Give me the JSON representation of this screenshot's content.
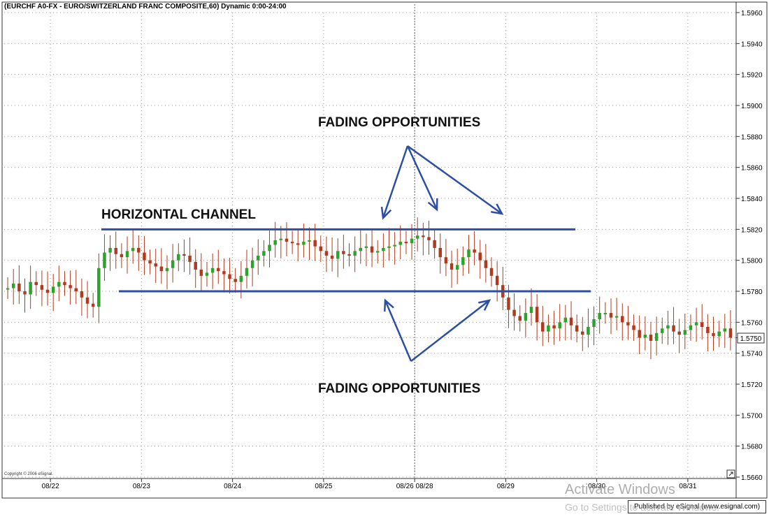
{
  "header": {
    "title": "(EURCHF A0-FX - EURO/SWITZERLAND FRANC COMPOSITE,60) Dynamic 0:00-24:00"
  },
  "footer": {
    "copyright": "Copyright © 2006 eSignal.",
    "published": "Published by eSignal (www.esignal.com)",
    "corner_icon": "expand-icon"
  },
  "overlay": {
    "watermark_line1": "Activate Windows",
    "watermark_line2": "Go to Settings to activate Windows."
  },
  "colors": {
    "up_candle": "#2aa52a",
    "down_candle": "#b03a1e",
    "channel_line": "#2c4fa3",
    "arrow": "#2c4fa3",
    "grid": "#9a9a9a"
  },
  "chart_data": {
    "type": "candlestick",
    "title": "(EURCHF A0-FX - EURO/SWITZERLAND FRANC COMPOSITE,60) Dynamic 0:00-24:00",
    "ylim": [
      1.566,
      1.596
    ],
    "y_ticks": [
      "1.5960",
      "1.5940",
      "1.5920",
      "1.5900",
      "1.5880",
      "1.5860",
      "1.5840",
      "1.5820",
      "1.5800",
      "1.5780",
      "1.5760",
      "1.5750",
      "1.5740",
      "1.5720",
      "1.5700",
      "1.5680",
      "1.5660"
    ],
    "x_ticks": [
      "08/22",
      "08/23",
      "08/24",
      "08/25",
      "08/26 08/28",
      "08/29",
      "08/30",
      "08/31"
    ],
    "grid": true,
    "channel": {
      "label": "HORIZONTAL CHANNEL",
      "upper": 1.582,
      "lower": 1.578
    },
    "annotations": [
      "FADING OPPORTUNITIES",
      "FADING OPPORTUNITIES"
    ],
    "last_price": "1.5750",
    "series": [
      {
        "x": "08/22",
        "values": [
          1.5782,
          1.5785,
          1.578,
          1.5778,
          1.5786,
          1.5784,
          1.5781,
          1.5779,
          1.5783,
          1.5786,
          1.5784,
          1.5782,
          1.578,
          1.5776,
          1.5772,
          1.577
        ]
      },
      {
        "x": "08/23",
        "values": [
          1.5795,
          1.5805,
          1.5808,
          1.5804,
          1.5802,
          1.5806,
          1.5808,
          1.5805,
          1.58,
          1.5798,
          1.5796,
          1.5793,
          1.5795,
          1.58,
          1.5804,
          1.5803
        ]
      },
      {
        "x": "08/24",
        "values": [
          1.5799,
          1.5794,
          1.579,
          1.5792,
          1.5795,
          1.5793,
          1.5791,
          1.5788,
          1.5786,
          1.579,
          1.5795,
          1.58,
          1.5803,
          1.5806,
          1.581,
          1.5813
        ]
      },
      {
        "x": "08/25",
        "values": [
          1.5814,
          1.5812,
          1.5811,
          1.581,
          1.5812,
          1.5813,
          1.5809,
          1.5806,
          1.5803,
          1.5801,
          1.5806,
          1.5804,
          1.5803,
          1.5806,
          1.5808,
          1.5809
        ]
      },
      {
        "x": "08/26 08/28",
        "values": [
          1.5805,
          1.5806,
          1.5808,
          1.5809,
          1.581,
          1.5812,
          1.5811,
          1.5814,
          1.5816,
          1.5815,
          1.5813,
          1.5808,
          1.5802,
          1.5798,
          1.5794,
          1.5797
        ]
      },
      {
        "x": "08/29",
        "values": [
          1.5802,
          1.5807,
          1.5805,
          1.58,
          1.5795,
          1.579,
          1.5784,
          1.5776,
          1.5768,
          1.5764,
          1.5761,
          1.5766,
          1.577,
          1.576,
          1.5754,
          1.5758
        ]
      },
      {
        "x": "08/30",
        "values": [
          1.5756,
          1.576,
          1.5763,
          1.5758,
          1.5754,
          1.5752,
          1.5757,
          1.5762,
          1.5766,
          1.5766,
          1.5763,
          1.5764,
          1.576,
          1.5758,
          1.5755,
          1.575
        ]
      },
      {
        "x": "08/31",
        "values": [
          1.5752,
          1.5748,
          1.5753,
          1.5756,
          1.5758,
          1.5754,
          1.5752,
          1.5755,
          1.5758,
          1.576,
          1.5757,
          1.5753,
          1.5751,
          1.5754,
          1.5756,
          1.575
        ]
      }
    ]
  }
}
